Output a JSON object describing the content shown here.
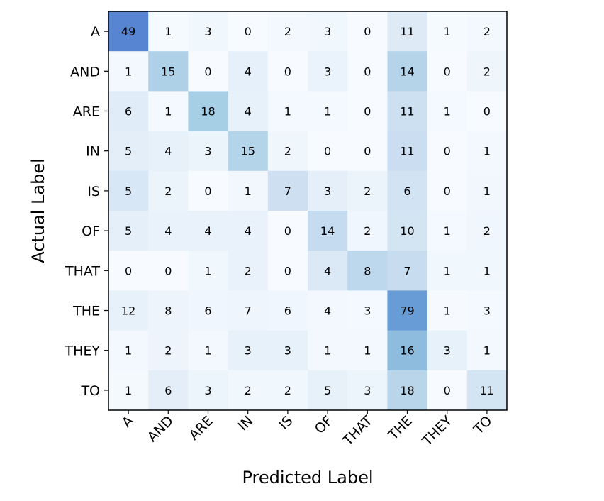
{
  "chart_data": {
    "type": "heatmap",
    "xlabel": "Predicted Label",
    "ylabel": "Actual Label",
    "x_categories": [
      "A",
      "AND",
      "ARE",
      "IN",
      "IS",
      "OF",
      "THAT",
      "THE",
      "THEY",
      "TO"
    ],
    "y_categories": [
      "A",
      "AND",
      "ARE",
      "IN",
      "IS",
      "OF",
      "THAT",
      "THE",
      "THEY",
      "TO"
    ],
    "values": [
      [
        49,
        1,
        3,
        0,
        2,
        3,
        0,
        11,
        1,
        2
      ],
      [
        1,
        15,
        0,
        4,
        0,
        3,
        0,
        14,
        0,
        2
      ],
      [
        6,
        1,
        18,
        4,
        1,
        1,
        0,
        11,
        1,
        0
      ],
      [
        5,
        4,
        3,
        15,
        2,
        0,
        0,
        11,
        0,
        1
      ],
      [
        5,
        2,
        0,
        1,
        7,
        3,
        2,
        6,
        0,
        1
      ],
      [
        5,
        4,
        4,
        4,
        0,
        14,
        2,
        10,
        1,
        2
      ],
      [
        0,
        0,
        1,
        2,
        0,
        4,
        8,
        7,
        1,
        1
      ],
      [
        12,
        8,
        6,
        7,
        6,
        4,
        3,
        79,
        1,
        3
      ],
      [
        1,
        2,
        1,
        3,
        3,
        1,
        1,
        16,
        3,
        1
      ],
      [
        1,
        6,
        3,
        2,
        2,
        5,
        3,
        18,
        0,
        11
      ]
    ],
    "colormap": "row-normalized blue-purple",
    "grid": false
  }
}
